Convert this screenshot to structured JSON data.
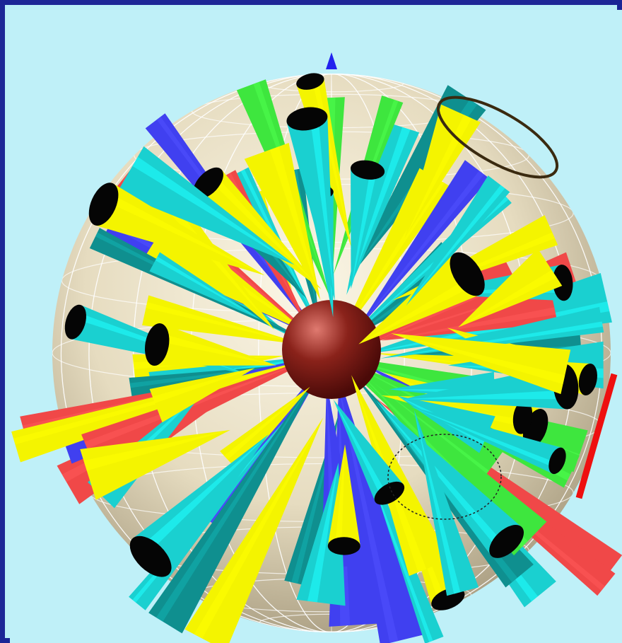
{
  "scene": {
    "description_tag": "3d-sphere-cone-visualization",
    "colors": {
      "background": "#bff0f8",
      "frame": "#1a2596",
      "sphere_light": "#f1ead6",
      "sphere_dark": "#bdb39a",
      "core": "#7a1a14",
      "cone_palette": [
        "#f4f400",
        "#3ee63e",
        "#4040f0",
        "#1ad0d0",
        "#f04848",
        "#0f8f8f"
      ]
    }
  }
}
